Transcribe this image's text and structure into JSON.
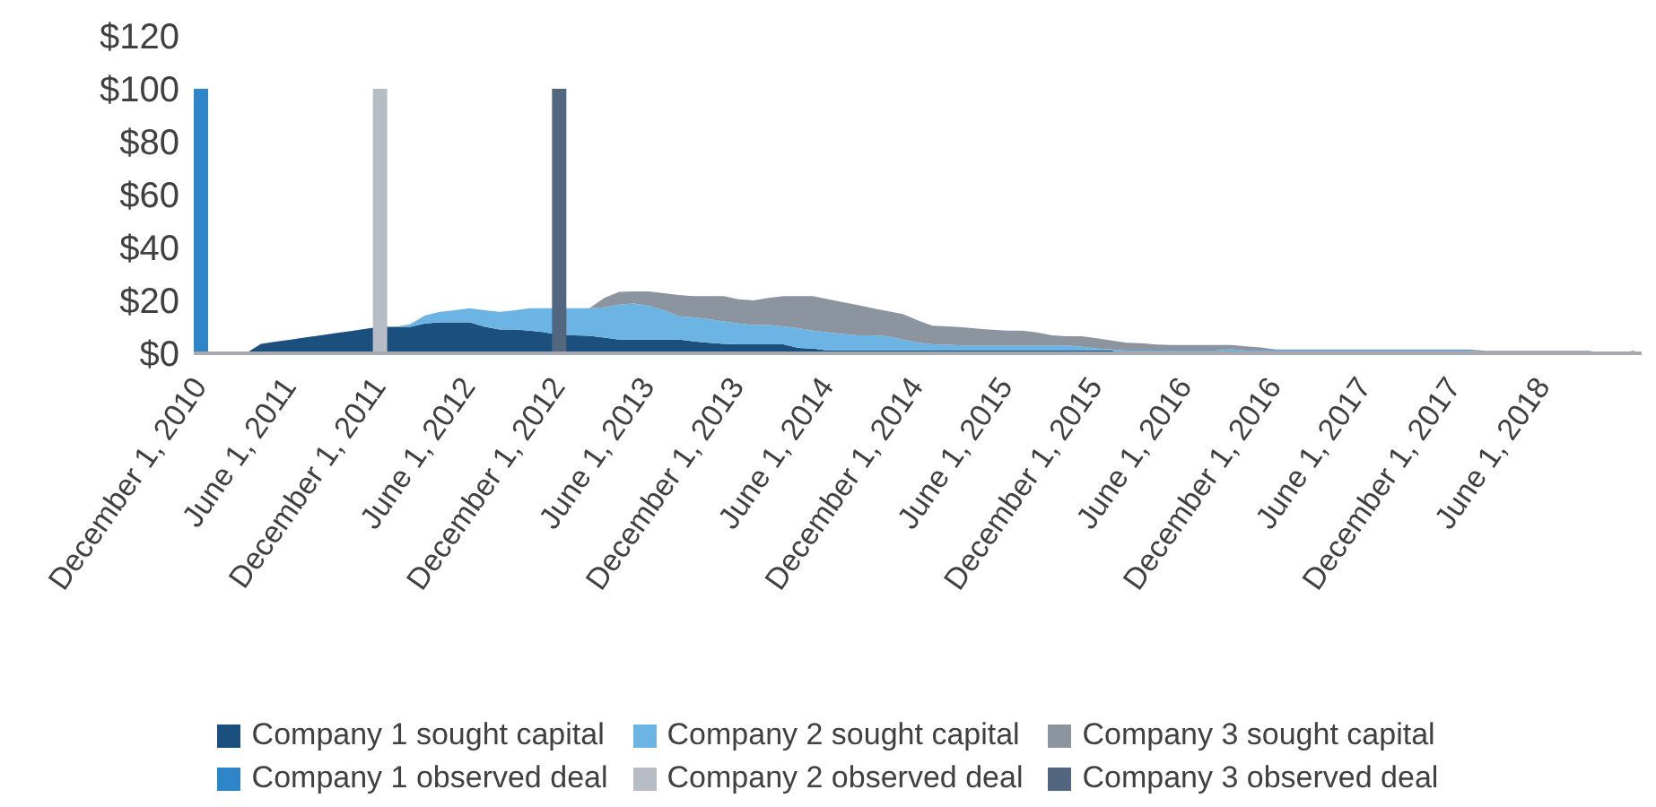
{
  "chart_data": {
    "type": "area",
    "stacked": true,
    "legend": "bottom",
    "categories": [
      "December 1, 2010",
      null,
      null,
      null,
      null,
      null,
      "June 1, 2011",
      null,
      null,
      null,
      null,
      null,
      "December 1, 2011",
      null,
      null,
      null,
      null,
      null,
      "June 1, 2012",
      null,
      null,
      null,
      null,
      null,
      "December 1, 2012",
      null,
      null,
      null,
      null,
      null,
      "June 1, 2013",
      null,
      null,
      null,
      null,
      null,
      "December 1, 2013",
      null,
      null,
      null,
      null,
      null,
      "June 1, 2014",
      null,
      null,
      null,
      null,
      null,
      "December 1, 2014",
      null,
      null,
      null,
      null,
      null,
      "June 1, 2015",
      null,
      null,
      null,
      null,
      null,
      "December 1, 2015",
      null,
      null,
      null,
      null,
      null,
      "June 1, 2016",
      null,
      null,
      null,
      null,
      null,
      "December 1, 2016",
      null,
      null,
      null,
      null,
      null,
      "June 1, 2017",
      null,
      null,
      null,
      null,
      null,
      "December 1, 2017",
      null,
      null,
      null,
      null,
      null,
      "June 1, 2018",
      null,
      null,
      null,
      null,
      null,
      null
    ],
    "ylim": [
      0,
      120
    ],
    "yticks": [
      {
        "value": 0,
        "label": "$0"
      },
      {
        "value": 20,
        "label": "$20"
      },
      {
        "value": 40,
        "label": "$40"
      },
      {
        "value": 60,
        "label": "$60"
      },
      {
        "value": 80,
        "label": "$80"
      },
      {
        "value": 100,
        "label": "$100"
      },
      {
        "value": 120,
        "label": "$120"
      }
    ],
    "series": [
      {
        "name": "Company 1 sought capital",
        "color": "#1b4f7e",
        "values": [
          0,
          0,
          0,
          0,
          3.6,
          4.4,
          5.2,
          6,
          6.8,
          7.6,
          8.4,
          9.2,
          10,
          10,
          10,
          11.3,
          11.7,
          11.7,
          11.7,
          10,
          9,
          9,
          8.6,
          8,
          6.8,
          6.8,
          6.6,
          5.9,
          5.2,
          5.2,
          5.2,
          5.2,
          5.2,
          4.5,
          4,
          3.6,
          3.4,
          3.4,
          3.4,
          3.4,
          2,
          1.8,
          1,
          1,
          1,
          1,
          1,
          1,
          1,
          1,
          1,
          1,
          1,
          1,
          1,
          1,
          1,
          1,
          1,
          1,
          1,
          1,
          0,
          0,
          0,
          0,
          0,
          0,
          0,
          0.5,
          0,
          0,
          0,
          0,
          0,
          0,
          0,
          0,
          0,
          0,
          0,
          0,
          0,
          0,
          0,
          0,
          0,
          0,
          0,
          0,
          0,
          0,
          0,
          0,
          0,
          0,
          0
        ]
      },
      {
        "name": "Company 2 sought capital",
        "color": "#6cb4e4",
        "values": [
          0,
          0,
          0,
          0,
          0,
          0,
          0,
          0,
          0,
          0,
          0,
          0,
          0,
          0,
          1,
          3,
          4,
          4.6,
          5.3,
          6.3,
          6.7,
          7.3,
          8.4,
          9,
          10.2,
          10.2,
          10.4,
          11.5,
          13.2,
          13.6,
          12.7,
          11.1,
          8.8,
          9.1,
          8.9,
          8.4,
          7.9,
          7.3,
          7.3,
          6.8,
          7.5,
          6.8,
          6.9,
          6.3,
          5.8,
          5.8,
          5.4,
          4.2,
          3.1,
          2.4,
          2.2,
          2,
          2,
          2,
          2,
          2,
          2,
          2,
          2,
          1.5,
          0.8,
          0.4,
          1,
          1,
          1,
          1,
          1,
          1,
          1,
          1,
          1,
          1,
          1,
          1,
          1,
          1,
          1,
          1,
          1,
          1,
          1,
          1,
          1,
          1,
          1,
          1,
          0.5,
          0.5,
          0.5,
          0.5,
          0.5,
          0.5,
          0.5,
          0.5,
          0,
          0,
          0.5
        ]
      },
      {
        "name": "Company 3 sought capital",
        "color": "#8c959f",
        "values": [
          0,
          0,
          0,
          0,
          0,
          0,
          0,
          0,
          0,
          0,
          0,
          0,
          0,
          0,
          0,
          0,
          0,
          0,
          0,
          0,
          0,
          0,
          0,
          0,
          0,
          0,
          0,
          3.5,
          4.8,
          4.6,
          5.5,
          6.4,
          8,
          8,
          8.7,
          9.6,
          9.1,
          9.3,
          10.2,
          11.4,
          12.1,
          13,
          12.5,
          12,
          11.4,
          10.2,
          9.5,
          9.6,
          8.4,
          7,
          7,
          6.8,
          6.3,
          5.9,
          5.6,
          5.6,
          4.9,
          3.8,
          3.4,
          3.9,
          3.9,
          3.4,
          3,
          2.8,
          2.3,
          2.1,
          2.1,
          2.1,
          2.1,
          1.6,
          1.6,
          1.2,
          0.4,
          0.4,
          0.4,
          0.4,
          0.4,
          0.4,
          0.4,
          0.4,
          0.4,
          0.4,
          0.4,
          0.4,
          0.4,
          0.4,
          0.4,
          0.4,
          0.4,
          0.4,
          0.4,
          0.4,
          0.4,
          0.4,
          0,
          0,
          0.5
        ]
      },
      {
        "name": "Company 1 observed deal",
        "type": "bar",
        "color": "#2e86c8",
        "values": [
          100,
          null,
          null,
          null,
          null,
          null,
          null,
          null,
          null,
          null,
          null,
          null,
          null,
          null,
          null,
          null,
          null,
          null,
          null,
          null,
          null,
          null,
          null,
          null,
          null,
          null,
          null,
          null,
          null,
          null,
          null,
          null,
          null,
          null,
          null,
          null,
          null,
          null,
          null,
          null,
          null,
          null,
          null,
          null,
          null,
          null,
          null,
          null,
          null,
          null,
          null,
          null,
          null,
          null,
          null,
          null,
          null,
          null,
          null,
          null,
          null,
          null,
          null,
          null,
          null,
          null,
          null,
          null,
          null,
          null,
          null,
          null,
          null,
          null,
          null,
          null,
          null,
          null,
          null,
          null,
          null,
          null,
          null,
          null,
          null,
          null,
          null,
          null,
          null,
          null,
          null,
          null,
          null,
          null,
          null,
          null,
          null
        ]
      },
      {
        "name": "Company 2 observed deal",
        "type": "bar",
        "color": "#b8bcc4",
        "values": [
          null,
          null,
          null,
          null,
          null,
          null,
          null,
          null,
          null,
          null,
          null,
          null,
          100,
          null,
          null,
          null,
          null,
          null,
          null,
          null,
          null,
          null,
          null,
          null,
          null,
          null,
          null,
          null,
          null,
          null,
          null,
          null,
          null,
          null,
          null,
          null,
          null,
          null,
          null,
          null,
          null,
          null,
          null,
          null,
          null,
          null,
          null,
          null,
          null,
          null,
          null,
          null,
          null,
          null,
          null,
          null,
          null,
          null,
          null,
          null,
          null,
          null,
          null,
          null,
          null,
          null,
          null,
          null,
          null,
          null,
          null,
          null,
          null,
          null,
          null,
          null,
          null,
          null,
          null,
          null,
          null,
          null,
          null,
          null,
          null,
          null,
          null,
          null,
          null,
          null,
          null,
          null,
          null,
          null,
          null,
          null,
          null
        ]
      },
      {
        "name": "Company 3 observed deal",
        "type": "bar",
        "color": "#52667f",
        "values": [
          null,
          null,
          null,
          null,
          null,
          null,
          null,
          null,
          null,
          null,
          null,
          null,
          null,
          null,
          null,
          null,
          null,
          null,
          null,
          null,
          null,
          null,
          null,
          null,
          100,
          null,
          null,
          null,
          null,
          null,
          null,
          null,
          null,
          null,
          null,
          null,
          null,
          null,
          null,
          null,
          null,
          null,
          null,
          null,
          null,
          null,
          null,
          null,
          null,
          null,
          null,
          null,
          null,
          null,
          null,
          null,
          null,
          null,
          null,
          null,
          null,
          null,
          null,
          null,
          null,
          null,
          null,
          null,
          null,
          null,
          null,
          null,
          null,
          null,
          null,
          null,
          null,
          null,
          null,
          null,
          null,
          null,
          null,
          null,
          null,
          null,
          null,
          null,
          null,
          null,
          null,
          null,
          null,
          null,
          null,
          null,
          null
        ]
      }
    ]
  }
}
